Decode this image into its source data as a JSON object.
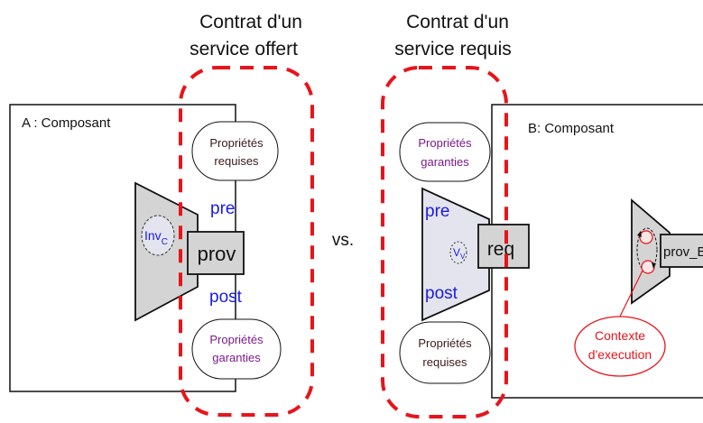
{
  "headings": {
    "offered_line1": "Contrat d'un",
    "offered_line2": "service offert",
    "required_line1": "Contrat d'un",
    "required_line2": "service requis"
  },
  "separator": "vs.",
  "component_a": {
    "title": "A : Composant",
    "invariant_main": "Inv",
    "invariant_sub": "C",
    "port_label": "prov",
    "pre": "pre",
    "post": "post",
    "required_props_line1": "Propriétés",
    "required_props_line2": "requises",
    "guaranteed_props_line1": "Propriétés",
    "guaranteed_props_line2": "garanties"
  },
  "component_b": {
    "title": "B: Composant",
    "invariant_main": "V",
    "invariant_sub": "V",
    "port_label": "req",
    "pre": "pre",
    "post": "post",
    "guaranteed_props_line1": "Propriétés",
    "guaranteed_props_line2": "garanties",
    "required_props_line1": "Propriétés",
    "required_props_line2": "requises",
    "prov_port_label": "prov_B",
    "context_line1": "Contexte",
    "context_line2": "d'execution"
  },
  "colors": {
    "contract_border": "#e8141b",
    "keyword_blue": "#1a1ae6",
    "property_purple": "#7a1a8a",
    "property_dark": "#3a1a1a",
    "port_fill": "#d4d4d4",
    "inner_fill": "#e4e4ee"
  }
}
